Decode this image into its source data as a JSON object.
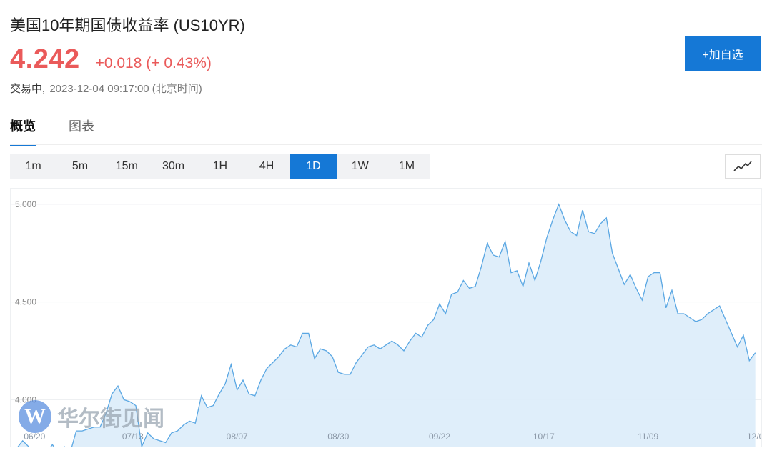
{
  "header": {
    "title": "美国10年期国债收益率 (US10YR)",
    "price": "4.242",
    "change": "+0.018 (+ 0.43%)",
    "status": "交易中,",
    "timestamp": "2023-12-04 09:17:00 (北京时间)",
    "add_button": "+加自选"
  },
  "tabs": [
    "概览",
    "图表"
  ],
  "active_tab": 0,
  "periods": [
    "1m",
    "5m",
    "15m",
    "30m",
    "1H",
    "4H",
    "1D",
    "1W",
    "1M"
  ],
  "active_period": "1D",
  "chart_type_icon": "line-chart-icon",
  "watermark": {
    "logo_letter": "W",
    "text": "华尔街见闻"
  },
  "colors": {
    "accent": "#1578d6",
    "up": "#ea5a5a",
    "line": "#5aa7e3",
    "area": "#dcecfa"
  },
  "chart_data": {
    "type": "area",
    "title": "",
    "xlabel": "",
    "ylabel": "",
    "ylim": [
      3.76,
      5.08
    ],
    "xlim": [
      0,
      126
    ],
    "yticks": [
      "5.000",
      "4.500",
      "4.000"
    ],
    "ytick_values": [
      5.0,
      4.5,
      4.0
    ],
    "xticks": [
      {
        "label": "06/20",
        "x": 4
      },
      {
        "label": "07/13",
        "x": 20.5
      },
      {
        "label": "08/07",
        "x": 38
      },
      {
        "label": "08/30",
        "x": 55
      },
      {
        "label": "09/22",
        "x": 72
      },
      {
        "label": "10/17",
        "x": 89.5
      },
      {
        "label": "11/09",
        "x": 107
      },
      {
        "label": "12/0",
        "x": 125
      }
    ],
    "grid": true,
    "values": [
      3.75,
      3.75,
      3.79,
      3.76,
      3.74,
      3.74,
      3.73,
      3.77,
      3.73,
      3.76,
      3.73,
      3.84,
      3.84,
      3.85,
      3.86,
      3.86,
      3.93,
      4.03,
      4.07,
      4.0,
      3.99,
      3.97,
      3.76,
      3.83,
      3.8,
      3.79,
      3.78,
      3.83,
      3.84,
      3.87,
      3.89,
      3.88,
      4.02,
      3.96,
      3.97,
      4.03,
      4.08,
      4.18,
      4.05,
      4.1,
      4.03,
      4.02,
      4.1,
      4.16,
      4.19,
      4.22,
      4.26,
      4.28,
      4.27,
      4.34,
      4.34,
      4.21,
      4.26,
      4.25,
      4.22,
      4.14,
      4.13,
      4.13,
      4.19,
      4.23,
      4.27,
      4.28,
      4.26,
      4.28,
      4.3,
      4.28,
      4.25,
      4.3,
      4.34,
      4.32,
      4.38,
      4.41,
      4.49,
      4.44,
      4.54,
      4.55,
      4.61,
      4.57,
      4.58,
      4.68,
      4.8,
      4.74,
      4.73,
      4.81,
      4.65,
      4.66,
      4.58,
      4.7,
      4.61,
      4.71,
      4.83,
      4.92,
      5.0,
      4.92,
      4.86,
      4.84,
      4.97,
      4.86,
      4.85,
      4.9,
      4.93,
      4.75,
      4.67,
      4.59,
      4.64,
      4.57,
      4.51,
      4.63,
      4.65,
      4.65,
      4.47,
      4.56,
      4.44,
      4.44,
      4.42,
      4.4,
      4.41,
      4.44,
      4.46,
      4.48,
      4.41,
      4.34,
      4.27,
      4.33,
      4.2,
      4.24
    ]
  }
}
